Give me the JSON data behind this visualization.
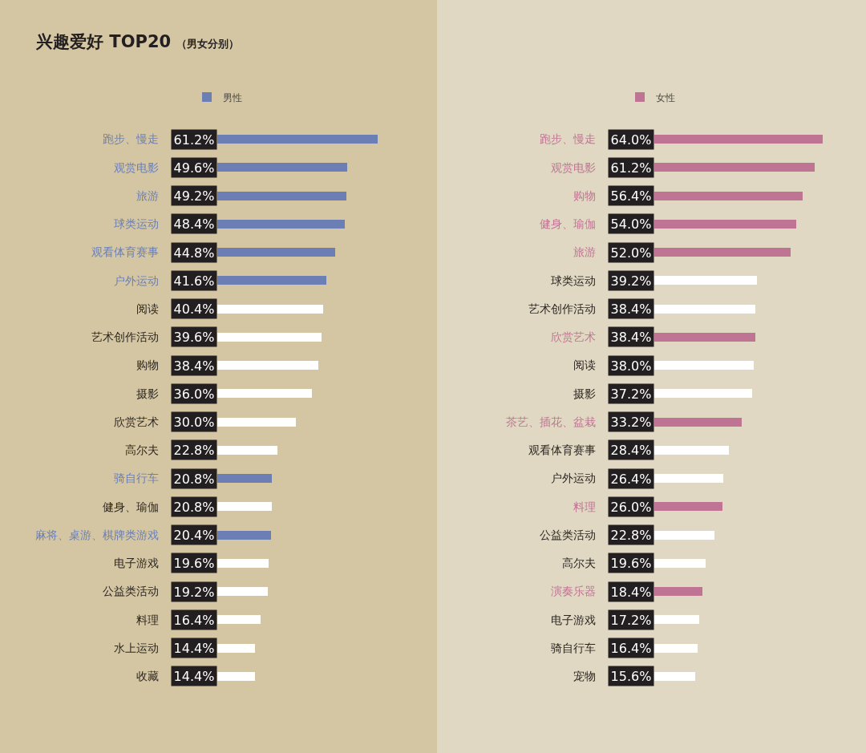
{
  "chart_data": [
    {
      "type": "bar",
      "orientation": "horizontal",
      "title": "兴趣爱好 TOP20",
      "subtitle": "（男女分别）",
      "legend": "top",
      "tick_labels": "y",
      "categories": [
        "跑步、慢走",
        "观赏电影",
        "旅游",
        "球类运动",
        "观看体育赛事",
        "户外运动",
        "阅读",
        "艺术创作活动",
        "购物",
        "摄影",
        "欣赏艺术",
        "高尔夫",
        "骑自行车",
        "健身、瑜伽",
        "麻将、桌游、棋牌类游戏",
        "电子游戏",
        "公益类活动",
        "料理",
        "水上运动",
        "收藏"
      ],
      "series": [
        {
          "name": "男性",
          "colors": [
            "#6b7fb5",
            "#6b7fb5",
            "#6b7fb5",
            "#6b7fb5",
            "#6b7fb5",
            "#6b7fb5",
            "#ffffff",
            "#ffffff",
            "#ffffff",
            "#ffffff",
            "#ffffff",
            "#ffffff",
            "#6b7fb5",
            "#ffffff",
            "#6b7fb5",
            "#ffffff",
            "#ffffff",
            "#ffffff",
            "#ffffff",
            "#ffffff"
          ],
          "values": [
            61.2,
            49.6,
            49.2,
            48.4,
            44.8,
            41.6,
            40.4,
            39.6,
            38.4,
            36.0,
            30.0,
            22.8,
            20.8,
            20.8,
            20.4,
            19.6,
            19.2,
            16.4,
            14.4,
            14.4
          ],
          "value_labels": [
            "61.2%",
            "49.6%",
            "49.2%",
            "48.4%",
            "44.8%",
            "41.6%",
            "40.4%",
            "39.6%",
            "38.4%",
            "36.0%",
            "30.0%",
            "22.8%",
            "20.8%",
            "20.8%",
            "20.4%",
            "19.6%",
            "19.2%",
            "16.4%",
            "14.4%",
            "14.4%"
          ]
        }
      ]
    },
    {
      "type": "bar",
      "orientation": "horizontal",
      "legend": "top",
      "tick_labels": "y",
      "categories": [
        "跑步、慢走",
        "观赏电影",
        "购物",
        "健身、瑜伽",
        "旅游",
        "球类运动",
        "艺术创作活动",
        "欣赏艺术",
        "阅读",
        "摄影",
        "茶艺、插花、盆栽",
        "观看体育赛事",
        "户外运动",
        "料理",
        "公益类活动",
        "高尔夫",
        "演奏乐器",
        "电子游戏",
        "骑自行车",
        "宠物"
      ],
      "series": [
        {
          "name": "女性",
          "colors": [
            "#bf7493",
            "#bf7493",
            "#bf7493",
            "#bf7493",
            "#bf7493",
            "#ffffff",
            "#ffffff",
            "#bf7493",
            "#ffffff",
            "#ffffff",
            "#bf7493",
            "#ffffff",
            "#ffffff",
            "#bf7493",
            "#ffffff",
            "#ffffff",
            "#bf7493",
            "#ffffff",
            "#ffffff",
            "#ffffff"
          ],
          "values": [
            64.0,
            61.2,
            56.4,
            54.0,
            52.0,
            39.2,
            38.4,
            38.4,
            38.0,
            37.2,
            33.2,
            28.4,
            26.4,
            26.0,
            22.8,
            19.6,
            18.4,
            17.2,
            16.4,
            15.6
          ],
          "value_labels": [
            "64.0%",
            "61.2%",
            "56.4%",
            "54.0%",
            "52.0%",
            "39.2%",
            "38.4%",
            "38.4%",
            "38.0%",
            "37.2%",
            "33.2%",
            "28.4%",
            "26.4%",
            "26.0%",
            "22.8%",
            "19.6%",
            "18.4%",
            "17.2%",
            "16.4%",
            "15.6%"
          ]
        }
      ]
    }
  ]
}
